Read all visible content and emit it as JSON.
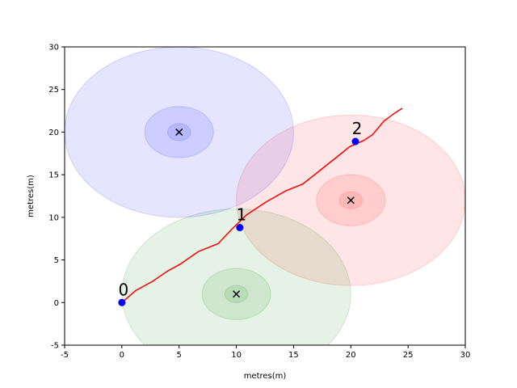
{
  "chart_data": {
    "type": "scatter",
    "title": "",
    "xlabel": "metres(m)",
    "ylabel": "metres(m)",
    "xlim": [
      -5,
      30
    ],
    "ylim": [
      -5,
      30
    ],
    "xticks": [
      -5,
      0,
      5,
      10,
      15,
      20,
      25,
      30
    ],
    "yticks": [
      -5,
      0,
      5,
      10,
      15,
      20,
      25,
      30
    ],
    "grid": false,
    "zones": [
      {
        "center": [
          5,
          20
        ],
        "radii": [
          10,
          3,
          1
        ],
        "color": "#0000ff"
      },
      {
        "center": [
          20,
          12
        ],
        "radii": [
          10,
          3,
          1
        ],
        "color": "#ff0000"
      },
      {
        "center": [
          10,
          1
        ],
        "radii": [
          10,
          3,
          1
        ],
        "color": "#008000"
      }
    ],
    "centers": [
      [
        5,
        20
      ],
      [
        20,
        12
      ],
      [
        10,
        1
      ]
    ],
    "trajectory": {
      "color": "#ff0000",
      "x": [
        0,
        1.2,
        2.7,
        4.0,
        5.1,
        6.7,
        8.4,
        9.6,
        10.9,
        12.6,
        14.3,
        15.8,
        17.3,
        18.8,
        19.9,
        21.1,
        21.9,
        22.9,
        23.9,
        24.5
      ],
      "y": [
        0,
        1.4,
        2.5,
        3.7,
        4.5,
        6.0,
        6.9,
        8.6,
        10.3,
        11.8,
        13.1,
        13.9,
        15.5,
        17.1,
        18.3,
        19.0,
        19.7,
        21.3,
        22.3,
        22.8
      ]
    },
    "waypoints": [
      {
        "label": "0",
        "x": 0,
        "y": 0
      },
      {
        "label": "1",
        "x": 10.3,
        "y": 8.8
      },
      {
        "label": "2",
        "x": 20.4,
        "y": 18.9
      }
    ],
    "waypoint_color": "#0000ff"
  }
}
